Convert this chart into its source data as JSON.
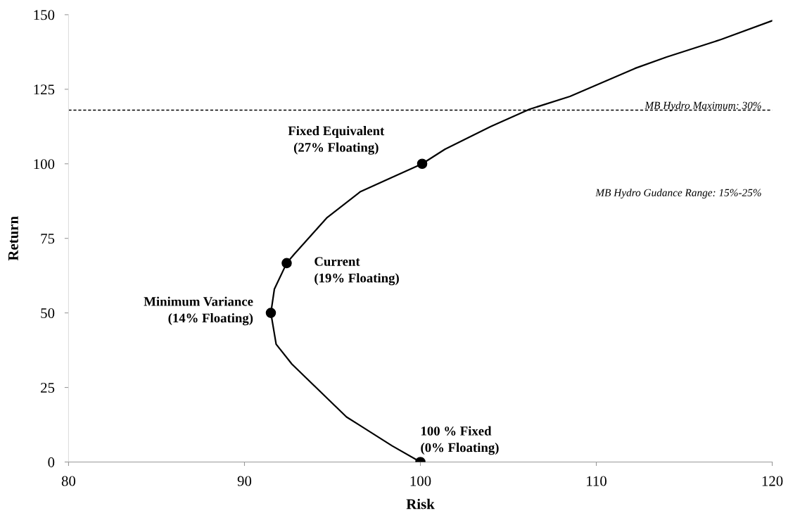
{
  "chart_data": {
    "type": "line",
    "xlabel": "Risk",
    "ylabel": "Return",
    "xlim": [
      80,
      120
    ],
    "xticks": [
      80,
      90,
      100,
      110,
      120
    ],
    "ylim": [
      0,
      150
    ],
    "yticks": [
      0,
      25,
      50,
      75,
      100,
      125,
      150
    ],
    "grid": false,
    "series": [
      {
        "color": "#000000",
        "marker": "none",
        "x": [
          100,
          98.4,
          95.8,
          92.7,
          91.8,
          91.5,
          91.7,
          92.4,
          92.8,
          94.7,
          96.6,
          100.1,
          101.4,
          104,
          106.2,
          108.5,
          112.2,
          114,
          117.1,
          120
        ],
        "values": [
          0,
          5.4,
          15.1,
          32.8,
          39.5,
          50,
          58,
          66.7,
          69.5,
          82,
          90.7,
          100,
          104.9,
          112.5,
          118.3,
          122.6,
          132,
          135.8,
          141.7,
          148
        ]
      },
      {
        "type": "scatter",
        "color": "#000000",
        "marker": "circle",
        "x": [
          100,
          91.5,
          92.4,
          100.1
        ],
        "values": [
          0,
          50,
          66.7,
          100
        ]
      }
    ],
    "ref_lines": [
      {
        "axis": "y",
        "value": 118,
        "color": "#000000",
        "line_style": "dashed"
      }
    ],
    "annotations": [
      {
        "text": "100 % Fixed\n(0% Floating)",
        "x": 100,
        "y": 0
      },
      {
        "text": "Minimum Variance\n(14% Floating)",
        "x": 91.5,
        "y": 50
      },
      {
        "text": "Current\n(19% Floating)",
        "x": 92.4,
        "y": 66.7
      },
      {
        "text": "Fixed Equivalent\n(27% Floating)",
        "x": 100.1,
        "y": 100
      },
      "MB Hydro Maximum: 30%",
      "MB Hydro Gudance Range: 15%-25%"
    ]
  }
}
